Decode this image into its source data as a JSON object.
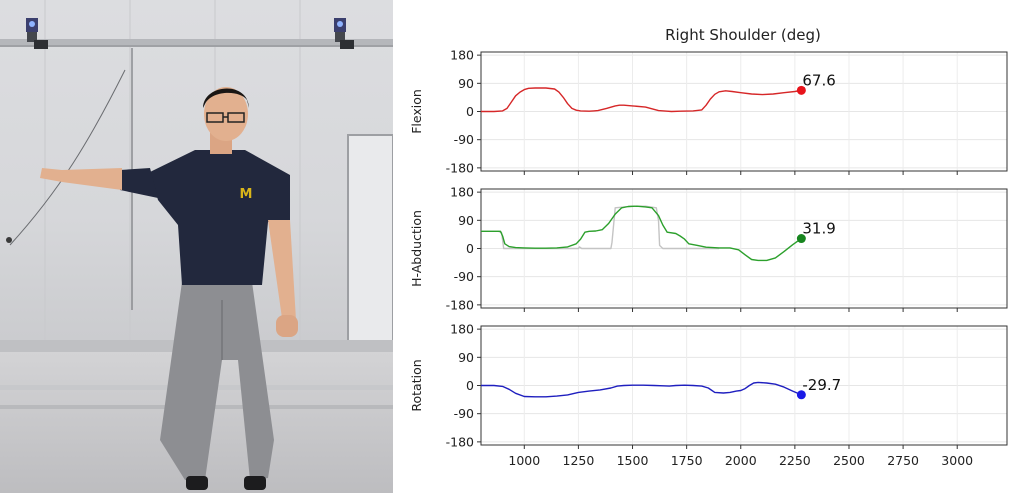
{
  "video": {
    "logo_text": "M"
  },
  "chart_data": {
    "type": "line",
    "title": "Right Shoulder (deg)",
    "xlim": [
      800,
      3230
    ],
    "xticks": [
      1000,
      1250,
      1500,
      1750,
      2000,
      2250,
      2500,
      2750,
      3000
    ],
    "ylim": [
      -190,
      190
    ],
    "yticks": [
      180,
      90,
      0,
      -90,
      -180
    ],
    "grid": true,
    "panels": [
      {
        "ylabel": "Flexion",
        "color": "#d62728",
        "marker_color": "#e8131b",
        "current_value": 67.6,
        "current_label": "67.6",
        "series": [
          {
            "name": "",
            "color": "#d62728",
            "x": [
              800,
              860,
              900,
              920,
              940,
              960,
              980,
              1000,
              1020,
              1050,
              1100,
              1140,
              1160,
              1180,
              1200,
              1220,
              1240,
              1260,
              1300,
              1320,
              1340,
              1380,
              1420,
              1440,
              1460,
              1500,
              1560,
              1620,
              1660,
              1680,
              1720,
              1780,
              1820,
              1840,
              1860,
              1880,
              1900,
              1930,
              1960,
              2000,
              2050,
              2100,
              2150,
              2200,
              2250,
              2280
            ],
            "y": [
              0,
              0,
              2,
              10,
              30,
              50,
              62,
              70,
              74,
              75,
              75,
              72,
              62,
              45,
              25,
              10,
              4,
              2,
              1,
              2,
              3,
              10,
              18,
              20,
              20,
              18,
              14,
              3,
              1,
              0,
              1,
              2,
              5,
              20,
              40,
              55,
              63,
              66,
              64,
              60,
              56,
              54,
              56,
              60,
              64,
              67.6
            ]
          }
        ]
      },
      {
        "ylabel": "H-Abduction",
        "color": "#2ca02c",
        "marker_color": "#17851f",
        "current_value": 31.9,
        "current_label": "31.9",
        "series": [
          {
            "name": "",
            "color": "#c4c4c4",
            "x": [
              800,
              880,
              895,
              905,
              1000,
              1100,
              1200,
              1250,
              1255,
              1265,
              1350,
              1400,
              1405,
              1420,
              1500,
              1560,
              1610,
              1620,
              1625,
              1640,
              1700,
              1720,
              1780,
              1820,
              1850,
              1900
            ],
            "y": [
              55,
              55,
              50,
              0,
              0,
              0,
              0,
              0,
              5,
              0,
              0,
              0,
              20,
              130,
              135,
              135,
              130,
              90,
              10,
              0,
              0,
              0,
              0,
              0,
              0,
              0
            ]
          },
          {
            "name": "",
            "color": "#2ca02c",
            "x": [
              800,
              890,
              900,
              910,
              930,
              960,
              1000,
              1050,
              1100,
              1150,
              1200,
              1240,
              1260,
              1280,
              1300,
              1330,
              1360,
              1390,
              1420,
              1450,
              1480,
              1520,
              1560,
              1590,
              1620,
              1640,
              1660,
              1700,
              1720,
              1740,
              1760,
              1800,
              1840,
              1870,
              1900,
              1950,
              1990,
              2020,
              2050,
              2080,
              2120,
              2160,
              2200,
              2240,
              2280
            ],
            "y": [
              55,
              55,
              40,
              15,
              6,
              3,
              2,
              1,
              1,
              2,
              5,
              15,
              30,
              52,
              55,
              56,
              60,
              80,
              110,
              130,
              134,
              135,
              133,
              130,
              105,
              75,
              52,
              48,
              40,
              30,
              15,
              10,
              4,
              3,
              2,
              2,
              -4,
              -20,
              -35,
              -38,
              -38,
              -30,
              -10,
              12,
              31.9
            ]
          }
        ]
      },
      {
        "ylabel": "Rotation",
        "color": "#1f1fbf",
        "marker_color": "#1a1ae6",
        "current_value": -29.7,
        "current_label": "-29.7",
        "series": [
          {
            "name": "",
            "color": "#1f1fbf",
            "x": [
              800,
              860,
              900,
              930,
              960,
              1000,
              1050,
              1100,
              1150,
              1200,
              1250,
              1300,
              1350,
              1400,
              1430,
              1460,
              1500,
              1550,
              1600,
              1640,
              1670,
              1700,
              1740,
              1780,
              1820,
              1850,
              1880,
              1920,
              1950,
              1980,
              2000,
              2020,
              2040,
              2060,
              2080,
              2120,
              2160,
              2200,
              2240,
              2280
            ],
            "y": [
              0,
              0,
              -3,
              -12,
              -25,
              -35,
              -36,
              -36,
              -34,
              -30,
              -22,
              -18,
              -14,
              -8,
              -2,
              0,
              1,
              1,
              0,
              -1,
              -2,
              0,
              1,
              0,
              -2,
              -8,
              -22,
              -24,
              -22,
              -18,
              -16,
              -10,
              0,
              8,
              10,
              8,
              4,
              -5,
              -18,
              -29.7
            ]
          }
        ]
      }
    ],
    "xlabel": "",
    "legend": "none"
  }
}
